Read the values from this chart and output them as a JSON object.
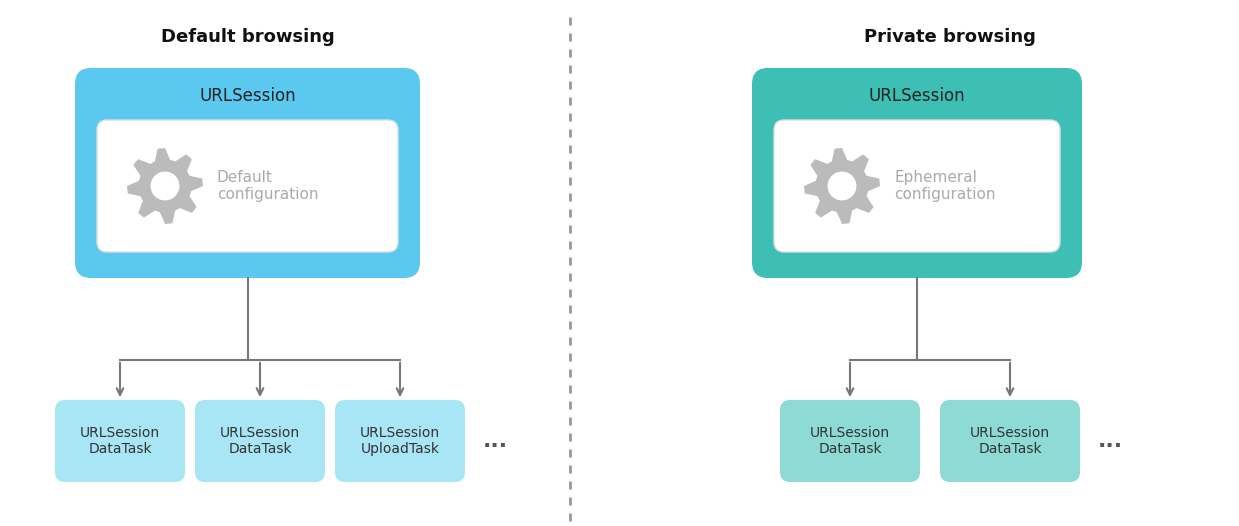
{
  "title_left": "Default browsing",
  "title_right": "Private browsing",
  "left_session_label": "URLSession",
  "left_config_label": "Default\nconfiguration",
  "left_tasks": [
    "URLSession\nDataTask",
    "URLSession\nDataTask",
    "URLSession\nUploadTask"
  ],
  "right_session_label": "URLSession",
  "right_config_label": "Ephemeral\nconfiguration",
  "right_tasks": [
    "URLSession\nDataTask",
    "URLSession\nDataTask"
  ],
  "color_left_outer": "#5BC8F0",
  "color_left_task": "#A8E6F5",
  "color_right_outer": "#3DBFB5",
  "color_right_task": "#8EDBD6",
  "color_config_bg": "#FFFFFF",
  "color_config_border": "#DDDDDD",
  "color_gear": "#BBBBBB",
  "color_arrow": "#777777",
  "color_title": "#111111",
  "color_label_session": "#222222",
  "color_label_task": "#333333",
  "color_config_text": "#AAAAAA",
  "color_divider": "#999999",
  "background": "#FFFFFF"
}
